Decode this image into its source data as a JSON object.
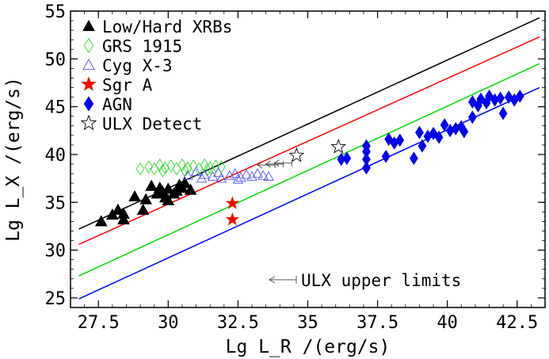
{
  "chart_data": {
    "type": "scatter",
    "xlabel": "Lg L_R /(erg/s)",
    "ylabel": "Lg L_X /(erg/s)",
    "xlim": [
      26.5,
      43.5
    ],
    "ylim": [
      24,
      55
    ],
    "xticks": [
      27.5,
      30,
      32.5,
      35,
      37.5,
      40,
      42.5
    ],
    "yticks": [
      25,
      30,
      35,
      40,
      45,
      50,
      55
    ],
    "legend_position": "top-left",
    "fit_lines": [
      {
        "color": "#000000",
        "points": [
          [
            26.8,
            32.2
          ],
          [
            43.3,
            54.3
          ]
        ]
      },
      {
        "color": "#ff0000",
        "points": [
          [
            26.8,
            30.6
          ],
          [
            43.3,
            52.3
          ]
        ]
      },
      {
        "color": "#00dd00",
        "points": [
          [
            26.8,
            27.3
          ],
          [
            43.3,
            49.5
          ]
        ]
      },
      {
        "color": "#0000ff",
        "points": [
          [
            26.8,
            24.9
          ],
          [
            43.3,
            47.0
          ]
        ]
      }
    ],
    "series": [
      {
        "name": "Low/Hard XRBs",
        "marker": "triangle-filled",
        "color": "#000000",
        "points": [
          [
            27.6,
            33.0
          ],
          [
            28.0,
            33.7
          ],
          [
            28.2,
            34.2
          ],
          [
            28.4,
            33.8
          ],
          [
            28.4,
            33.2
          ],
          [
            28.8,
            35.6
          ],
          [
            29.1,
            34.2
          ],
          [
            29.2,
            35.3
          ],
          [
            29.4,
            36.7
          ],
          [
            29.6,
            35.9
          ],
          [
            29.8,
            36.1
          ],
          [
            29.9,
            35.5
          ],
          [
            30.0,
            36.4
          ],
          [
            30.0,
            35.2
          ],
          [
            30.2,
            35.9
          ],
          [
            30.4,
            36.8
          ],
          [
            30.5,
            36.5
          ],
          [
            30.6,
            37.0
          ],
          [
            30.8,
            36.3
          ],
          [
            30.3,
            36.2
          ],
          [
            29.7,
            36.5
          ]
        ]
      },
      {
        "name": "GRS 1915",
        "marker": "diamond-open",
        "color": "#33dd33",
        "points": [
          [
            29.0,
            38.5
          ],
          [
            29.3,
            38.7
          ],
          [
            29.5,
            38.5
          ],
          [
            29.7,
            38.9
          ],
          [
            29.9,
            38.6
          ],
          [
            30.1,
            38.8
          ],
          [
            30.3,
            38.5
          ],
          [
            30.5,
            38.9
          ],
          [
            30.7,
            38.6
          ],
          [
            30.9,
            38.8
          ],
          [
            31.1,
            38.5
          ],
          [
            31.3,
            38.9
          ],
          [
            31.5,
            38.6
          ],
          [
            31.7,
            38.8
          ],
          [
            31.9,
            38.7
          ],
          [
            29.8,
            38.3
          ],
          [
            30.6,
            38.3
          ],
          [
            31.4,
            38.4
          ]
        ]
      },
      {
        "name": "Cyg X-3",
        "marker": "triangle-open",
        "color": "#5555ee",
        "points": [
          [
            30.7,
            37.8
          ],
          [
            31.0,
            38.2
          ],
          [
            31.3,
            37.9
          ],
          [
            31.6,
            37.7
          ],
          [
            31.9,
            37.5
          ],
          [
            32.2,
            37.8
          ],
          [
            32.4,
            38.0
          ],
          [
            32.6,
            37.6
          ],
          [
            32.8,
            37.9
          ],
          [
            33.0,
            37.7
          ],
          [
            33.2,
            38.0
          ],
          [
            33.4,
            37.8
          ],
          [
            33.6,
            37.7
          ],
          [
            31.8,
            38.1
          ],
          [
            32.5,
            37.4
          ],
          [
            31.2,
            37.5
          ]
        ]
      },
      {
        "name": "Sgr A",
        "marker": "star-filled",
        "color": "#ff0000",
        "points": [
          [
            32.3,
            34.9
          ],
          [
            32.3,
            33.2
          ]
        ]
      },
      {
        "name": "AGN",
        "marker": "diamond-filled",
        "color": "#0000ee",
        "points": [
          [
            36.2,
            39.5
          ],
          [
            36.4,
            39.6
          ],
          [
            37.1,
            40.9
          ],
          [
            37.1,
            40.3
          ],
          [
            37.1,
            39.5
          ],
          [
            37.1,
            38.6
          ],
          [
            37.8,
            39.8
          ],
          [
            37.9,
            41.6
          ],
          [
            38.1,
            41.2
          ],
          [
            38.3,
            41.5
          ],
          [
            38.8,
            39.6
          ],
          [
            39.0,
            42.3
          ],
          [
            39.1,
            40.9
          ],
          [
            39.3,
            41.9
          ],
          [
            39.5,
            42.2
          ],
          [
            39.7,
            41.8
          ],
          [
            39.9,
            43.1
          ],
          [
            40.1,
            42.5
          ],
          [
            40.3,
            42.7
          ],
          [
            40.5,
            42.9
          ],
          [
            40.6,
            42.4
          ],
          [
            40.9,
            43.9
          ],
          [
            40.9,
            45.5
          ],
          [
            41.1,
            45.1
          ],
          [
            41.2,
            45.8
          ],
          [
            41.4,
            45.4
          ],
          [
            41.5,
            46.1
          ],
          [
            41.7,
            45.7
          ],
          [
            41.9,
            45.9
          ],
          [
            42.0,
            44.3
          ],
          [
            42.2,
            46.0
          ],
          [
            42.4,
            45.7
          ],
          [
            42.6,
            46.1
          ]
        ]
      },
      {
        "name": "ULX Detect",
        "marker": "star-open",
        "color": "#000000",
        "points": [
          [
            34.6,
            39.9
          ],
          [
            36.1,
            40.8
          ]
        ]
      }
    ],
    "upper_limits": {
      "color": "#555555",
      "points": [
        [
          33.5,
          39.0
        ],
        [
          33.8,
          39.1
        ],
        [
          33.2,
          38.9
        ]
      ]
    },
    "annotation": "ULX upper limits"
  }
}
